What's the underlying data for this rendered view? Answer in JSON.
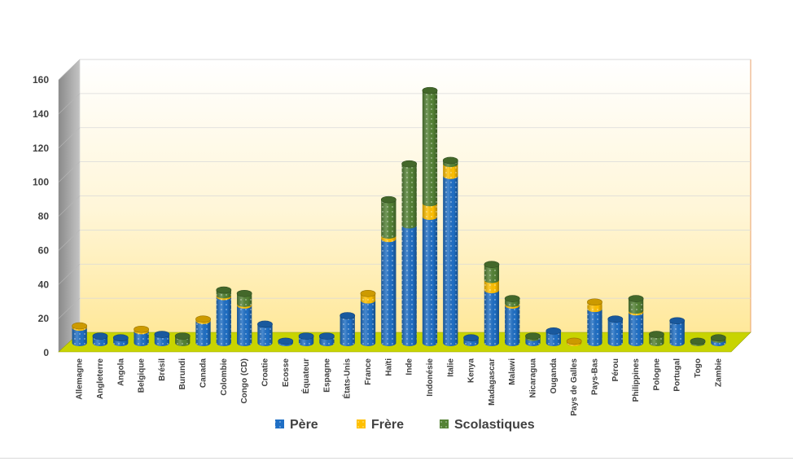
{
  "chart_data": {
    "type": "bar",
    "stacked": true,
    "style": "3d-cylinder",
    "title": "",
    "xlabel": "",
    "ylabel": "",
    "ylim": [
      0,
      160
    ],
    "yticks": [
      0,
      20,
      40,
      60,
      80,
      100,
      120,
      140,
      160
    ],
    "grid": true,
    "legend": "bottom",
    "categories": [
      "Allemagne",
      "Angleterre",
      "Angola",
      "Belgique",
      "Brésil",
      "Burundi",
      "Canada",
      "Colombie",
      "Congo (CD)",
      "Croatie",
      "Ecosse",
      "Équateur",
      "Espagne",
      "États-Unis",
      "France",
      "Haïti",
      "Inde",
      "Indonésie",
      "Italie",
      "Kenya",
      "Madagascar",
      "Malawi",
      "Nicaragua",
      "Ouganda",
      "Pays de Galles",
      "Pays-Bas",
      "Pérou",
      "Philippines",
      "Pologne",
      "Portugal",
      "Togo",
      "Zambie"
    ],
    "series": [
      {
        "name": "Père",
        "color": "#1f6fc5",
        "values": [
          9,
          4,
          3,
          7,
          5,
          0,
          13,
          27,
          22,
          11,
          1,
          4,
          4,
          16,
          25,
          61,
          69,
          74,
          98,
          3,
          31,
          22,
          3,
          7,
          0,
          20,
          14,
          18,
          0,
          13,
          0,
          2
        ]
      },
      {
        "name": "Frère",
        "color": "#ffc000",
        "values": [
          1,
          0,
          0,
          1,
          0,
          0,
          1,
          1,
          1,
          0,
          0,
          0,
          0,
          0,
          4,
          2,
          0,
          8,
          7,
          0,
          6,
          1,
          0,
          0,
          1,
          4,
          0,
          1,
          0,
          0,
          0,
          0
        ]
      },
      {
        "name": "Scolastiques",
        "color": "#548235",
        "values": [
          0,
          0,
          0,
          0,
          0,
          4,
          0,
          3,
          6,
          0,
          0,
          0,
          0,
          0,
          0,
          21,
          36,
          66,
          2,
          0,
          9,
          3,
          1,
          0,
          0,
          0,
          0,
          7,
          5,
          0,
          1,
          1
        ]
      }
    ]
  }
}
